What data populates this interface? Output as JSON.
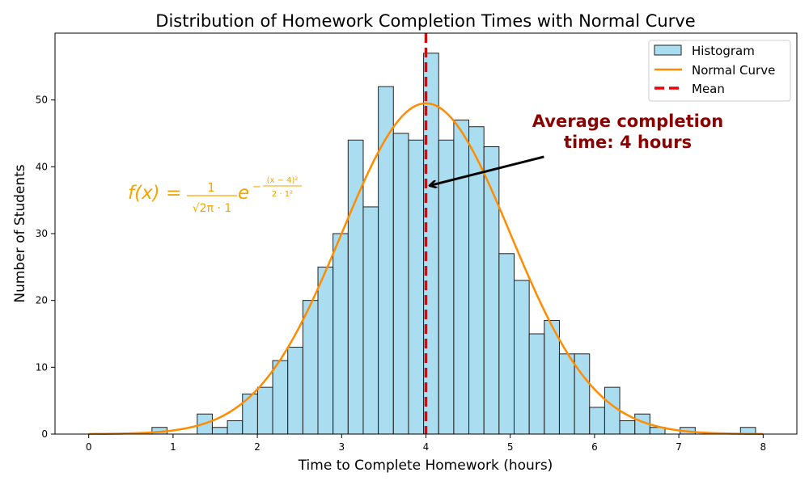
{
  "chart_data": {
    "type": "bar",
    "title": "Distribution of Homework Completion Times with Normal Curve",
    "xlabel": "Time to Complete Homework (hours)",
    "ylabel": "Number of Students",
    "xlim": [
      -0.4,
      8.4
    ],
    "ylim": [
      0,
      60
    ],
    "xticks": [
      0,
      1,
      2,
      3,
      4,
      5,
      6,
      7,
      8
    ],
    "yticks": [
      0,
      10,
      20,
      30,
      40,
      50
    ],
    "grid": false,
    "legend_position": "top-right",
    "histogram": {
      "name": "Histogram",
      "color": "#87ceeb",
      "edge_color": "#222222",
      "bin_edges": [
        0.75,
        0.929,
        1.108,
        1.287,
        1.466,
        1.645,
        1.824,
        2.003,
        2.182,
        2.361,
        2.54,
        2.719,
        2.898,
        3.077,
        3.256,
        3.435,
        3.614,
        3.793,
        3.972,
        4.151,
        4.33,
        4.509,
        4.688,
        4.867,
        5.046,
        5.225,
        5.404,
        5.583,
        5.762,
        5.941,
        6.12,
        6.299,
        6.478,
        6.657,
        6.836,
        7.015,
        7.194,
        7.373,
        7.552,
        7.731,
        7.91
      ],
      "counts": [
        1,
        0,
        0,
        3,
        1,
        2,
        6,
        7,
        11,
        13,
        20,
        25,
        30,
        44,
        34,
        52,
        45,
        44,
        57,
        44,
        47,
        46,
        43,
        27,
        23,
        15,
        17,
        12,
        12,
        4,
        7,
        2,
        3,
        1,
        0,
        1,
        0,
        0,
        0,
        1
      ]
    },
    "normal_curve": {
      "name": "Normal Curve",
      "color": "#ff8c00",
      "mean": 4,
      "std": 1,
      "peak": 49.5,
      "x_range": [
        0,
        8
      ]
    },
    "mean_line": {
      "name": "Mean",
      "x": 4,
      "color": "#ee0000"
    },
    "annotation": {
      "line1": "Average completion",
      "line2": "time: 4 hours",
      "arrow_target": [
        4.05,
        37.2
      ],
      "arrow_tail": [
        5.4,
        41.5
      ],
      "color": "#8b0000"
    },
    "formula": {
      "lhs": "f(x) =",
      "numerator": "1",
      "denominator": "√2π · 1",
      "base": "e",
      "exp_sign": "−",
      "exp_numerator": "(x − 4)²",
      "exp_denominator": "2 · 1²",
      "color": "#f5a300"
    },
    "legend": [
      "Histogram",
      "Normal Curve",
      "Mean"
    ]
  }
}
